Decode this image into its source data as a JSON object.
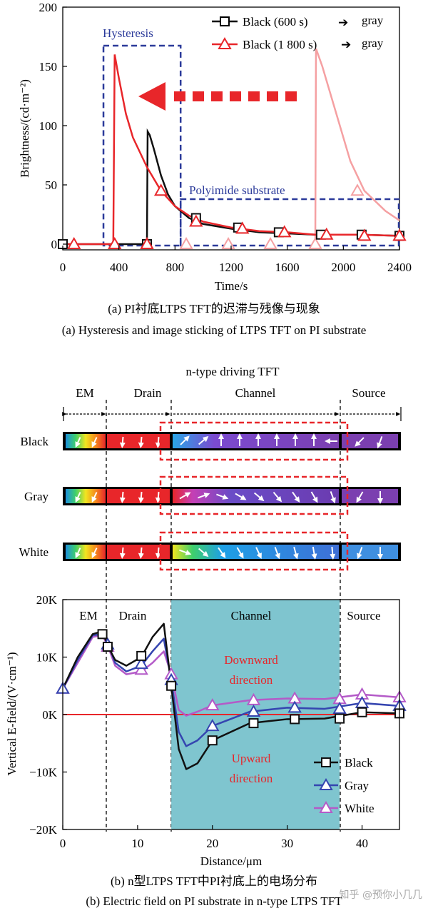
{
  "top_chart": {
    "caption_cn": "(a) PI衬底LTPS TFT的迟滞与残像与现象",
    "caption_en": "(a) Hysteresis and image sticking of LTPS TFT on PI substrate",
    "xlabel": "Time/s",
    "ylabel": "Brightness/(cd·m⁻²)",
    "x_ticks": [
      "0",
      "400",
      "800",
      "1200",
      "1600",
      "2000",
      "2400"
    ],
    "y_ticks": [
      "0",
      "50",
      "100",
      "150",
      "200"
    ],
    "annotations": {
      "hysteresis": "Hysteresis",
      "polyimide": "Polyimide substrate"
    },
    "legend": [
      {
        "label": "Black (600 s)",
        "arrow": "➔",
        "target": "gray"
      },
      {
        "label": "Black (1 800 s)",
        "arrow": "➔",
        "target": "gray"
      }
    ]
  },
  "middle_diagram": {
    "title": "n-type driving TFT",
    "regions": [
      "EM",
      "Drain",
      "Channel",
      "Source"
    ],
    "rows": [
      "Black",
      "Gray",
      "White"
    ]
  },
  "bottom_chart": {
    "caption_cn": "(b) n型LTPS TFT中PI衬底上的电场分布",
    "caption_en": "(b) Electric field on PI substrate in n-type LTPS TFT",
    "xlabel": "Distance/μm",
    "ylabel": "Vertical E-field/(V·cm⁻¹)",
    "x_ticks": [
      "0",
      "10",
      "20",
      "30",
      "40"
    ],
    "y_ticks": [
      "−20K",
      "−10K",
      "0K",
      "10K",
      "20K"
    ],
    "regions": [
      "EM",
      "Drain",
      "Channel",
      "Source"
    ],
    "annotations": {
      "downward_1": "Downward",
      "downward_2": "direction",
      "upward_1": "Upward",
      "upward_2": "direction"
    },
    "legend": [
      "Black",
      "Gray",
      "White"
    ]
  },
  "watermark": "知乎 @预你小几几",
  "colors": {
    "red": "#e8262a",
    "light_red": "#f5a0a2",
    "blue_dash": "#2b3a9a",
    "channel_fill": "#7fc5cf",
    "black": "#111111",
    "gray_series": "#3545b0",
    "white_series": "#b45ac8"
  },
  "chart_data": [
    {
      "type": "line",
      "title": "",
      "xlabel": "Time/s",
      "ylabel": "Brightness/(cd·m⁻²)",
      "xlim": [
        0,
        2400
      ],
      "ylim": [
        0,
        200
      ],
      "series": [
        {
          "name": "Black (600 s) ➔ gray",
          "marker": "square",
          "points": [
            [
              0,
              0
            ],
            [
              590,
              0
            ],
            [
              600,
              0
            ],
            [
              605,
              95
            ],
            [
              620,
              92
            ],
            [
              650,
              80
            ],
            [
              700,
              58
            ],
            [
              750,
              42
            ],
            [
              800,
              32
            ],
            [
              900,
              22
            ],
            [
              1000,
              17
            ],
            [
              1200,
              13
            ],
            [
              1400,
              10
            ],
            [
              1600,
              9
            ],
            [
              1800,
              8
            ],
            [
              2100,
              8
            ],
            [
              2400,
              7
            ]
          ]
        },
        {
          "name": "Black (1 800 s) ➔ gray",
          "marker": "triangle",
          "points": [
            [
              0,
              0
            ],
            [
              360,
              0
            ],
            [
              370,
              160
            ],
            [
              400,
              140
            ],
            [
              450,
              110
            ],
            [
              500,
              90
            ],
            [
              600,
              65
            ],
            [
              700,
              45
            ],
            [
              800,
              32
            ],
            [
              900,
              24
            ],
            [
              1000,
              19
            ],
            [
              1200,
              14
            ],
            [
              1400,
              11
            ],
            [
              1600,
              10
            ],
            [
              1800,
              8
            ],
            [
              2100,
              8
            ],
            [
              2400,
              7
            ]
          ]
        }
      ],
      "markers_black": [
        [
          0,
          0
        ],
        [
          600,
          0
        ],
        [
          950,
          22
        ],
        [
          1250,
          14
        ],
        [
          1540,
          10
        ],
        [
          1840,
          8
        ],
        [
          2130,
          8
        ],
        [
          2400,
          7
        ]
      ],
      "markers_red": [
        [
          80,
          0
        ],
        [
          370,
          0
        ],
        [
          600,
          0
        ],
        [
          700,
          45
        ],
        [
          950,
          19
        ],
        [
          1280,
          13
        ],
        [
          1580,
          10
        ],
        [
          1880,
          8
        ],
        [
          2150,
          7
        ],
        [
          2400,
          7
        ]
      ],
      "markers_light_red": [
        [
          600,
          0
        ],
        [
          880,
          0
        ],
        [
          1180,
          0
        ],
        [
          1480,
          0
        ],
        [
          1800,
          0
        ],
        [
          2100,
          45
        ]
      ]
    },
    {
      "type": "line",
      "title": "",
      "xlabel": "Distance/μm",
      "ylabel": "Vertical E-field/(V·cm⁻¹)",
      "xlim": [
        0,
        45
      ],
      "ylim": [
        -20000,
        20000
      ],
      "series": [
        {
          "name": "Black",
          "marker": "square",
          "points": [
            [
              0,
              4500
            ],
            [
              2,
              10000
            ],
            [
              4,
              14000
            ],
            [
              5.3,
              14500
            ],
            [
              6,
              12000
            ],
            [
              7,
              9500
            ],
            [
              8.5,
              8500
            ],
            [
              10.5,
              10000
            ],
            [
              12,
              13500
            ],
            [
              13.5,
              15800
            ],
            [
              14.5,
              5000
            ],
            [
              15.5,
              -6000
            ],
            [
              16.5,
              -9500
            ],
            [
              18,
              -8500
            ],
            [
              20,
              -4500
            ],
            [
              25,
              -1500
            ],
            [
              30,
              -800
            ],
            [
              35,
              -700
            ],
            [
              40,
              400
            ],
            [
              45,
              200
            ]
          ],
          "marker_points": [
            [
              5.3,
              14000
            ],
            [
              6,
              11800
            ],
            [
              10.5,
              10200
            ],
            [
              14.5,
              5000
            ],
            [
              20,
              -4500
            ],
            [
              25.5,
              -1500
            ],
            [
              31,
              -800
            ],
            [
              37,
              -700
            ],
            [
              40,
              400
            ],
            [
              45,
              200
            ]
          ]
        },
        {
          "name": "Gray",
          "marker": "triangle",
          "points": [
            [
              0,
              4500
            ],
            [
              2,
              9500
            ],
            [
              4,
              13800
            ],
            [
              5.3,
              14000
            ],
            [
              6,
              12500
            ],
            [
              7,
              9000
            ],
            [
              8.5,
              7500
            ],
            [
              10.5,
              8500
            ],
            [
              12,
              11000
            ],
            [
              13.5,
              13200
            ],
            [
              14.5,
              6000
            ],
            [
              15.5,
              -3000
            ],
            [
              16.5,
              -5500
            ],
            [
              18,
              -4500
            ],
            [
              20,
              -2000
            ],
            [
              25,
              500
            ],
            [
              30,
              1200
            ],
            [
              35,
              1000
            ],
            [
              40,
              2000
            ],
            [
              45,
              1500
            ]
          ],
          "marker_points": [
            [
              0,
              4500
            ],
            [
              6,
              12200
            ],
            [
              10.5,
              8800
            ],
            [
              14.5,
              6000
            ],
            [
              20,
              -2000
            ],
            [
              25.5,
              500
            ],
            [
              31,
              1200
            ],
            [
              37,
              1000
            ],
            [
              40,
              2000
            ],
            [
              45,
              1500
            ]
          ]
        },
        {
          "name": "White",
          "marker": "triangle",
          "points": [
            [
              0,
              4500
            ],
            [
              2,
              9000
            ],
            [
              4,
              13500
            ],
            [
              5.3,
              13800
            ],
            [
              6,
              12000
            ],
            [
              7,
              8500
            ],
            [
              8.5,
              7000
            ],
            [
              10.5,
              7500
            ],
            [
              12,
              9000
            ],
            [
              13.5,
              11000
            ],
            [
              14.5,
              7000
            ],
            [
              15.5,
              800
            ],
            [
              16.5,
              -200
            ],
            [
              18,
              500
            ],
            [
              20,
              1600
            ],
            [
              25,
              2500
            ],
            [
              30,
              2800
            ],
            [
              35,
              2700
            ],
            [
              40,
              3500
            ],
            [
              45,
              3000
            ]
          ],
          "marker_points": [
            [
              0,
              4500
            ],
            [
              6,
              11800
            ],
            [
              10.5,
              7800
            ],
            [
              14.5,
              7000
            ],
            [
              20,
              1600
            ],
            [
              25.5,
              2500
            ],
            [
              31,
              2800
            ],
            [
              37,
              2700
            ],
            [
              40,
              3500
            ],
            [
              45,
              3000
            ]
          ]
        }
      ],
      "reference_line": 0,
      "shaded_region": [
        14.5,
        37
      ]
    }
  ]
}
